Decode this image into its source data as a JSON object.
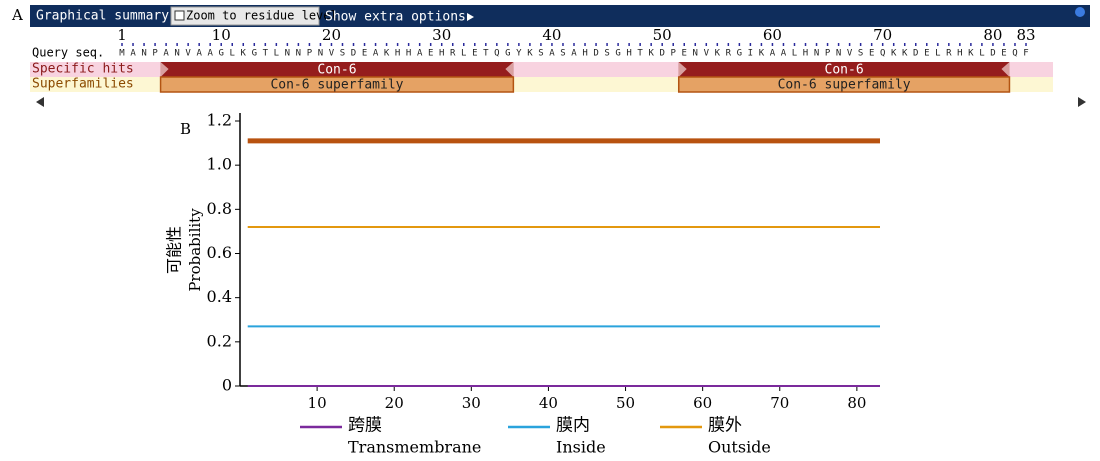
{
  "panel_a": {
    "label": "A",
    "toolbar": {
      "title": "Graphical summary",
      "zoom": "Zoom to residue level",
      "options": "Show extra options"
    },
    "ruler": {
      "range": [
        1,
        83
      ],
      "ticks": [
        1,
        10,
        20,
        30,
        40,
        50,
        60,
        70,
        80,
        83
      ]
    },
    "query": {
      "label": "Query seq.",
      "sequence": "MANPANVAAGLKGTLNNPNVSDEAKHHAEHRLETQGYKSASAHDSGHTKDPENVKRGIKAALHNPNVSEQKKDELRHKLDEQF"
    },
    "specific_hits": {
      "label": "Specific hits",
      "hits": [
        {
          "name": "Con-6",
          "start": 5,
          "end": 36
        },
        {
          "name": "Con-6",
          "start": 52,
          "end": 81
        }
      ]
    },
    "superfamilies": {
      "label": "Superfamilies",
      "hits": [
        {
          "name": "Con-6 superfamily",
          "start": 5,
          "end": 36
        },
        {
          "name": "Con-6 superfamily",
          "start": 52,
          "end": 81
        }
      ]
    }
  },
  "chart_data": {
    "type": "line",
    "label": "B",
    "ylabel": "可能性",
    "ylabel_en": "Probability",
    "x": [
      1,
      83
    ],
    "xlim": [
      0,
      83
    ],
    "xticks": [
      10,
      20,
      30,
      40,
      50,
      60,
      70,
      80
    ],
    "ylim": [
      0,
      1.2
    ],
    "yticks": [
      0,
      0.2,
      0.4,
      0.6,
      0.8,
      {
        "value": 1,
        "label": "1.0"
      },
      1.2
    ],
    "series": [
      {
        "name": "跨膜",
        "name_en": "Transmembrane",
        "color": "#7b2a9c",
        "values": [
          0,
          0
        ]
      },
      {
        "name": "膜内",
        "name_en": "Inside",
        "color": "#2aa3dc",
        "values": [
          0.27,
          0.27
        ]
      },
      {
        "name": "膜外",
        "name_en": "Outside",
        "color": "#e3980f",
        "values": [
          0.72,
          0.72
        ]
      },
      {
        "color": "#b8520f",
        "values": [
          1.11,
          1.11
        ],
        "line_width": 5
      }
    ]
  }
}
